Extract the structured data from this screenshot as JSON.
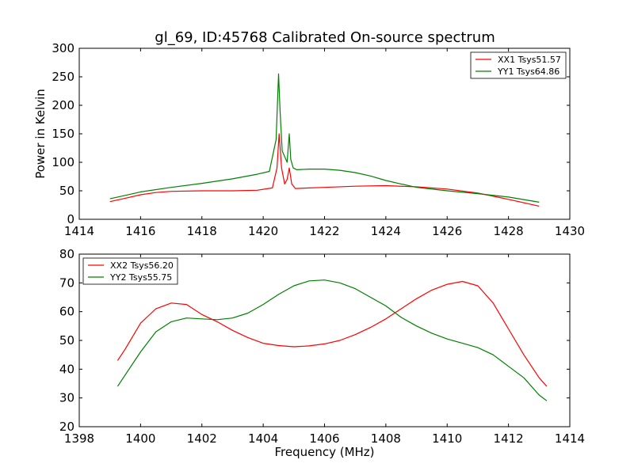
{
  "title": "gl_69, ID:45768 Calibrated On-source spectrum",
  "chart_data": [
    {
      "type": "line",
      "ylabel": "Power in Kelvin",
      "xlim": [
        1414,
        1430
      ],
      "ylim": [
        0,
        300
      ],
      "xticks": [
        1414,
        1416,
        1418,
        1420,
        1422,
        1424,
        1426,
        1428,
        1430
      ],
      "yticks": [
        0,
        50,
        100,
        150,
        200,
        250,
        300
      ],
      "legend": "top-right",
      "series": [
        {
          "name": "XX1 Tsys51.57",
          "color": "#ff0000",
          "x": [
            1415.0,
            1415.5,
            1416.0,
            1416.5,
            1417.0,
            1418.0,
            1419.0,
            1419.8,
            1420.3,
            1420.45,
            1420.52,
            1420.6,
            1420.7,
            1420.78,
            1420.85,
            1420.93,
            1421.05,
            1421.5,
            1422.0,
            1423.0,
            1424.0,
            1425.0,
            1426.0,
            1427.0,
            1428.0,
            1429.0
          ],
          "y": [
            31,
            37,
            43,
            47,
            49,
            50,
            50,
            51,
            55,
            90,
            150,
            90,
            62,
            70,
            90,
            62,
            54,
            55,
            56,
            58,
            59,
            57,
            53,
            46,
            35,
            23
          ]
        },
        {
          "name": "YY1 Tsys64.86",
          "color": "#008000",
          "x": [
            1415.0,
            1415.5,
            1416.0,
            1417.0,
            1418.0,
            1419.0,
            1419.8,
            1420.2,
            1420.42,
            1420.5,
            1420.55,
            1420.62,
            1420.7,
            1420.78,
            1420.85,
            1420.9,
            1420.98,
            1421.1,
            1421.5,
            1422.0,
            1422.5,
            1423.0,
            1423.5,
            1424.0,
            1424.5,
            1425.0,
            1426.0,
            1427.0,
            1428.0,
            1429.0
          ],
          "y": [
            36,
            42,
            48,
            56,
            63,
            71,
            79,
            84,
            140,
            255,
            190,
            120,
            110,
            100,
            150,
            105,
            90,
            87,
            88,
            88,
            86,
            82,
            76,
            68,
            62,
            56,
            50,
            45,
            39,
            30
          ]
        }
      ]
    },
    {
      "type": "line",
      "xlabel": "Frequency (MHz)",
      "xlim": [
        1398,
        1414
      ],
      "ylim": [
        20,
        80
      ],
      "xticks": [
        1398,
        1400,
        1402,
        1404,
        1406,
        1408,
        1410,
        1412,
        1414
      ],
      "yticks": [
        20,
        30,
        40,
        50,
        60,
        70,
        80
      ],
      "legend": "top-left",
      "series": [
        {
          "name": "XX2 Tsys56.20",
          "color": "#ff0000",
          "x": [
            1399.25,
            1399.5,
            1400.0,
            1400.5,
            1401.0,
            1401.5,
            1402.0,
            1402.5,
            1403.0,
            1403.5,
            1404.0,
            1404.5,
            1405.0,
            1405.5,
            1406.0,
            1406.5,
            1407.0,
            1407.5,
            1408.0,
            1408.5,
            1409.0,
            1409.5,
            1410.0,
            1410.5,
            1411.0,
            1411.5,
            1412.0,
            1412.5,
            1413.0,
            1413.25
          ],
          "y": [
            43,
            47,
            56,
            61,
            63,
            62.5,
            59,
            56.5,
            53.5,
            51,
            49,
            48.2,
            47.8,
            48.1,
            48.8,
            50,
            52,
            54.5,
            57.5,
            61,
            64.5,
            67.5,
            69.5,
            70.5,
            69,
            63,
            54,
            45,
            37,
            34
          ]
        },
        {
          "name": "YY2 Tsys55.75",
          "color": "#008000",
          "x": [
            1399.25,
            1399.5,
            1400.0,
            1400.5,
            1401.0,
            1401.5,
            1402.0,
            1402.5,
            1403.0,
            1403.5,
            1404.0,
            1404.5,
            1405.0,
            1405.5,
            1406.0,
            1406.5,
            1407.0,
            1407.5,
            1408.0,
            1408.5,
            1409.0,
            1409.5,
            1410.0,
            1410.5,
            1411.0,
            1411.5,
            1412.0,
            1412.5,
            1413.0,
            1413.25
          ],
          "y": [
            34,
            38,
            46,
            53,
            56.5,
            57.8,
            57.5,
            57.2,
            57.8,
            59.5,
            62.5,
            66,
            69,
            70.7,
            71,
            70,
            68,
            65,
            62,
            58,
            55,
            52.5,
            50.5,
            49,
            47.5,
            45,
            41,
            37,
            31,
            29
          ]
        }
      ]
    }
  ]
}
